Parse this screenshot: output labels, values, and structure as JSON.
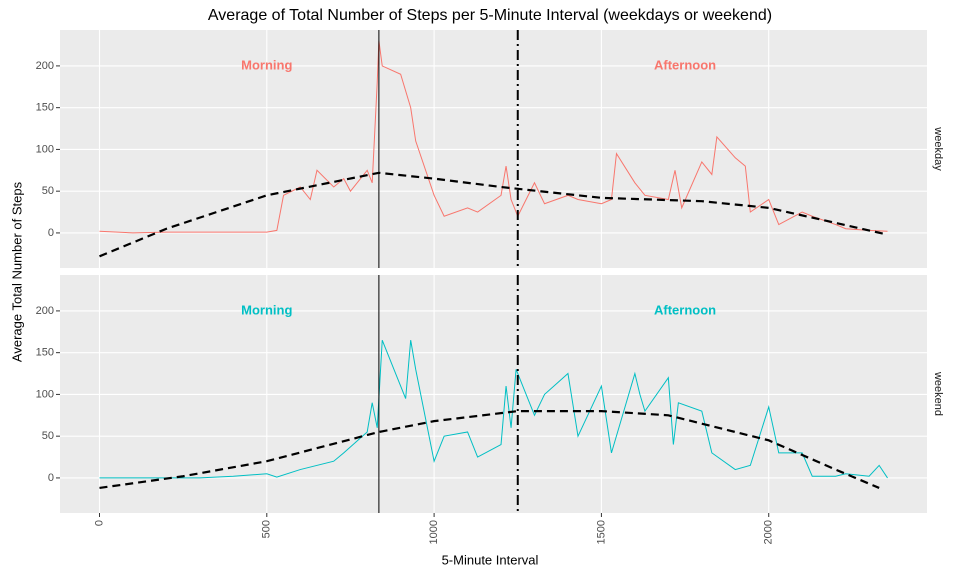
{
  "chart_data": {
    "type": "line",
    "title": "Average of Total Number of Steps per 5-Minute Interval (weekdays or weekend)",
    "x_label": "5-Minute Interval",
    "y_label": "Average Total Number of Steps",
    "xlim": [
      -118,
      2473
    ],
    "xticks": [
      0,
      500,
      1000,
      1500,
      2000
    ],
    "ylim": [
      -42,
      243
    ],
    "yticks": [
      0,
      50,
      100,
      150,
      200
    ],
    "grid": true,
    "vlines": [
      {
        "x": 835,
        "style": "solid"
      },
      {
        "x": 1250,
        "style": "dashdot"
      }
    ],
    "panels": [
      {
        "strip": "weekday",
        "color": "#F8766D",
        "annotations": [
          {
            "text": "Morning",
            "x": 500,
            "y": 200
          },
          {
            "text": "Afternoon",
            "x": 1750,
            "y": 200
          }
        ],
        "x": [
          0,
          100,
          200,
          300,
          400,
          500,
          530,
          550,
          600,
          630,
          650,
          700,
          730,
          750,
          800,
          815,
          830,
          835,
          845,
          900,
          930,
          945,
          1000,
          1030,
          1100,
          1130,
          1200,
          1215,
          1230,
          1250,
          1300,
          1330,
          1400,
          1430,
          1500,
          1530,
          1545,
          1600,
          1630,
          1700,
          1720,
          1740,
          1800,
          1830,
          1845,
          1900,
          1930,
          1945,
          2000,
          2030,
          2100,
          2130,
          2200,
          2230,
          2300,
          2355
        ],
        "values": [
          2,
          0,
          1,
          1,
          1,
          1,
          3,
          45,
          55,
          40,
          75,
          55,
          65,
          50,
          75,
          60,
          180,
          230,
          200,
          190,
          150,
          110,
          45,
          20,
          30,
          25,
          45,
          80,
          40,
          20,
          60,
          35,
          45,
          40,
          35,
          40,
          95,
          60,
          45,
          40,
          75,
          30,
          85,
          70,
          115,
          90,
          80,
          25,
          40,
          10,
          25,
          20,
          10,
          5,
          3,
          2
        ],
        "smooth_x": [
          0,
          200,
          500,
          835,
          1000,
          1200,
          1500,
          1800,
          2000,
          2200,
          2355
        ],
        "smooth_values": [
          -28,
          5,
          45,
          72,
          65,
          55,
          42,
          38,
          30,
          12,
          -2
        ]
      },
      {
        "strip": "weekend",
        "color": "#00BFC4",
        "annotations": [
          {
            "text": "Morning",
            "x": 500,
            "y": 200
          },
          {
            "text": "Afternoon",
            "x": 1750,
            "y": 200
          }
        ],
        "x": [
          0,
          100,
          200,
          300,
          400,
          500,
          530,
          600,
          700,
          730,
          800,
          815,
          830,
          845,
          900,
          915,
          930,
          945,
          1000,
          1030,
          1100,
          1130,
          1200,
          1215,
          1230,
          1245,
          1300,
          1330,
          1400,
          1430,
          1500,
          1530,
          1600,
          1615,
          1630,
          1700,
          1715,
          1730,
          1800,
          1830,
          1900,
          1945,
          2000,
          2030,
          2100,
          2130,
          2200,
          2230,
          2300,
          2330,
          2355
        ],
        "values": [
          0,
          0,
          0,
          0,
          2,
          5,
          1,
          10,
          20,
          30,
          55,
          90,
          60,
          165,
          110,
          95,
          165,
          130,
          20,
          50,
          55,
          25,
          40,
          110,
          60,
          130,
          75,
          100,
          125,
          50,
          110,
          30,
          125,
          100,
          80,
          120,
          40,
          90,
          80,
          30,
          10,
          15,
          85,
          30,
          30,
          2,
          2,
          5,
          2,
          15,
          0
        ],
        "smooth_x": [
          0,
          250,
          500,
          835,
          1000,
          1250,
          1500,
          1700,
          2000,
          2200,
          2330
        ],
        "smooth_values": [
          -12,
          2,
          20,
          55,
          68,
          80,
          80,
          75,
          45,
          10,
          -12
        ]
      }
    ]
  }
}
